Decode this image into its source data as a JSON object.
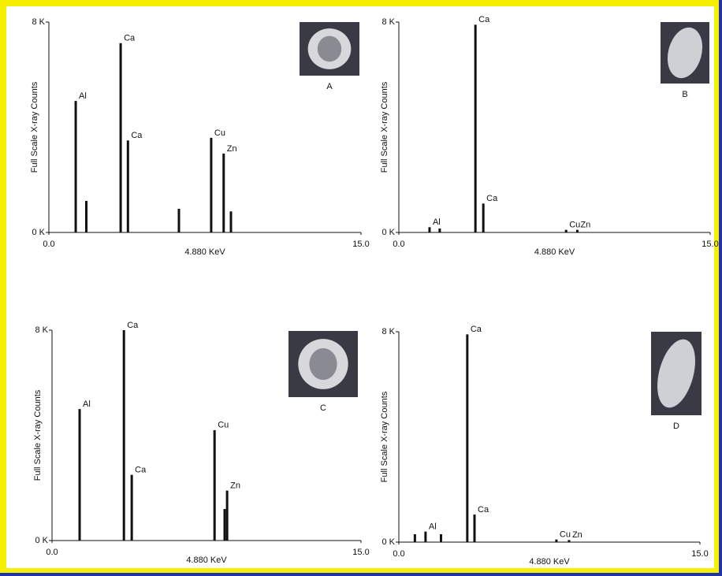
{
  "chart_data": [
    {
      "type": "spectrum",
      "panel": "A",
      "xlabel": "4.880 KeV",
      "ylabel": "Full Scale X-ray Counts",
      "xlim": [
        0,
        15
      ],
      "xticks": [
        {
          "value": 0,
          "label": "0.0"
        },
        {
          "value": 15,
          "label": "15.0"
        }
      ],
      "ylim": [
        0,
        8
      ],
      "yticks": [
        {
          "value": 0,
          "label": "0 K"
        },
        {
          "value": 8,
          "label": "8 K"
        }
      ],
      "color": "#111111",
      "x": [
        1.29,
        1.8,
        3.45,
        3.8,
        6.25,
        7.8,
        8.4,
        8.75
      ],
      "values": [
        5.0,
        1.2,
        7.2,
        3.5,
        0.9,
        3.6,
        3.0,
        0.8
      ],
      "peak_labels": [
        "Al",
        null,
        "Ca",
        "Ca",
        null,
        "Cu",
        "Zn",
        null
      ]
    },
    {
      "type": "spectrum",
      "panel": "B",
      "xlabel": "4.880 KeV",
      "ylabel": "Full Scale X-ray Counts",
      "xlim": [
        0,
        15
      ],
      "xticks": [
        {
          "value": 0,
          "label": "0.0"
        },
        {
          "value": 15,
          "label": "15.0"
        }
      ],
      "ylim": [
        0,
        8
      ],
      "yticks": [
        {
          "value": 0,
          "label": "0 K"
        },
        {
          "value": 8,
          "label": "8 K"
        }
      ],
      "color": "#111111",
      "x": [
        1.48,
        1.97,
        3.69,
        4.07,
        8.06,
        8.6
      ],
      "values": [
        0.2,
        0.15,
        7.9,
        1.1,
        0.1,
        0.1
      ],
      "peak_labels": [
        "Al",
        null,
        "Ca",
        "Ca",
        "Cu",
        "Zn"
      ]
    },
    {
      "type": "spectrum",
      "panel": "C",
      "xlabel": "4.880 KeV",
      "ylabel": "Full Scale X-ray Counts",
      "xlim": [
        0,
        15
      ],
      "xticks": [
        {
          "value": 0,
          "label": "0.0"
        },
        {
          "value": 15,
          "label": "15.0"
        }
      ],
      "ylim": [
        0,
        8
      ],
      "yticks": [
        {
          "value": 0,
          "label": "0 K"
        },
        {
          "value": 8,
          "label": "8 K"
        }
      ],
      "color": "#111111",
      "x": [
        1.34,
        3.49,
        3.87,
        7.89,
        8.38,
        8.5
      ],
      "values": [
        5.0,
        8.0,
        2.5,
        4.2,
        1.2,
        1.9
      ],
      "peak_labels": [
        "Al",
        "Ca",
        "Ca",
        "Cu",
        null,
        "Zn"
      ]
    },
    {
      "type": "spectrum",
      "panel": "D",
      "xlabel": "4.880 KeV",
      "ylabel": "Full Scale X-ray Counts",
      "xlim": [
        0,
        15
      ],
      "xticks": [
        {
          "value": 0,
          "label": "0.0"
        },
        {
          "value": 15,
          "label": "15.0"
        }
      ],
      "ylim": [
        0,
        8
      ],
      "yticks": [
        {
          "value": 0,
          "label": "0 K"
        },
        {
          "value": 8,
          "label": "8 K"
        }
      ],
      "color": "#111111",
      "x": [
        0.8,
        1.33,
        2.1,
        3.41,
        3.77,
        7.85,
        8.48
      ],
      "values": [
        0.3,
        0.4,
        0.3,
        7.9,
        1.05,
        0.1,
        0.08
      ],
      "peak_labels": [
        null,
        "Al",
        null,
        "Ca",
        "Ca",
        "Cu",
        "Zn"
      ]
    }
  ]
}
